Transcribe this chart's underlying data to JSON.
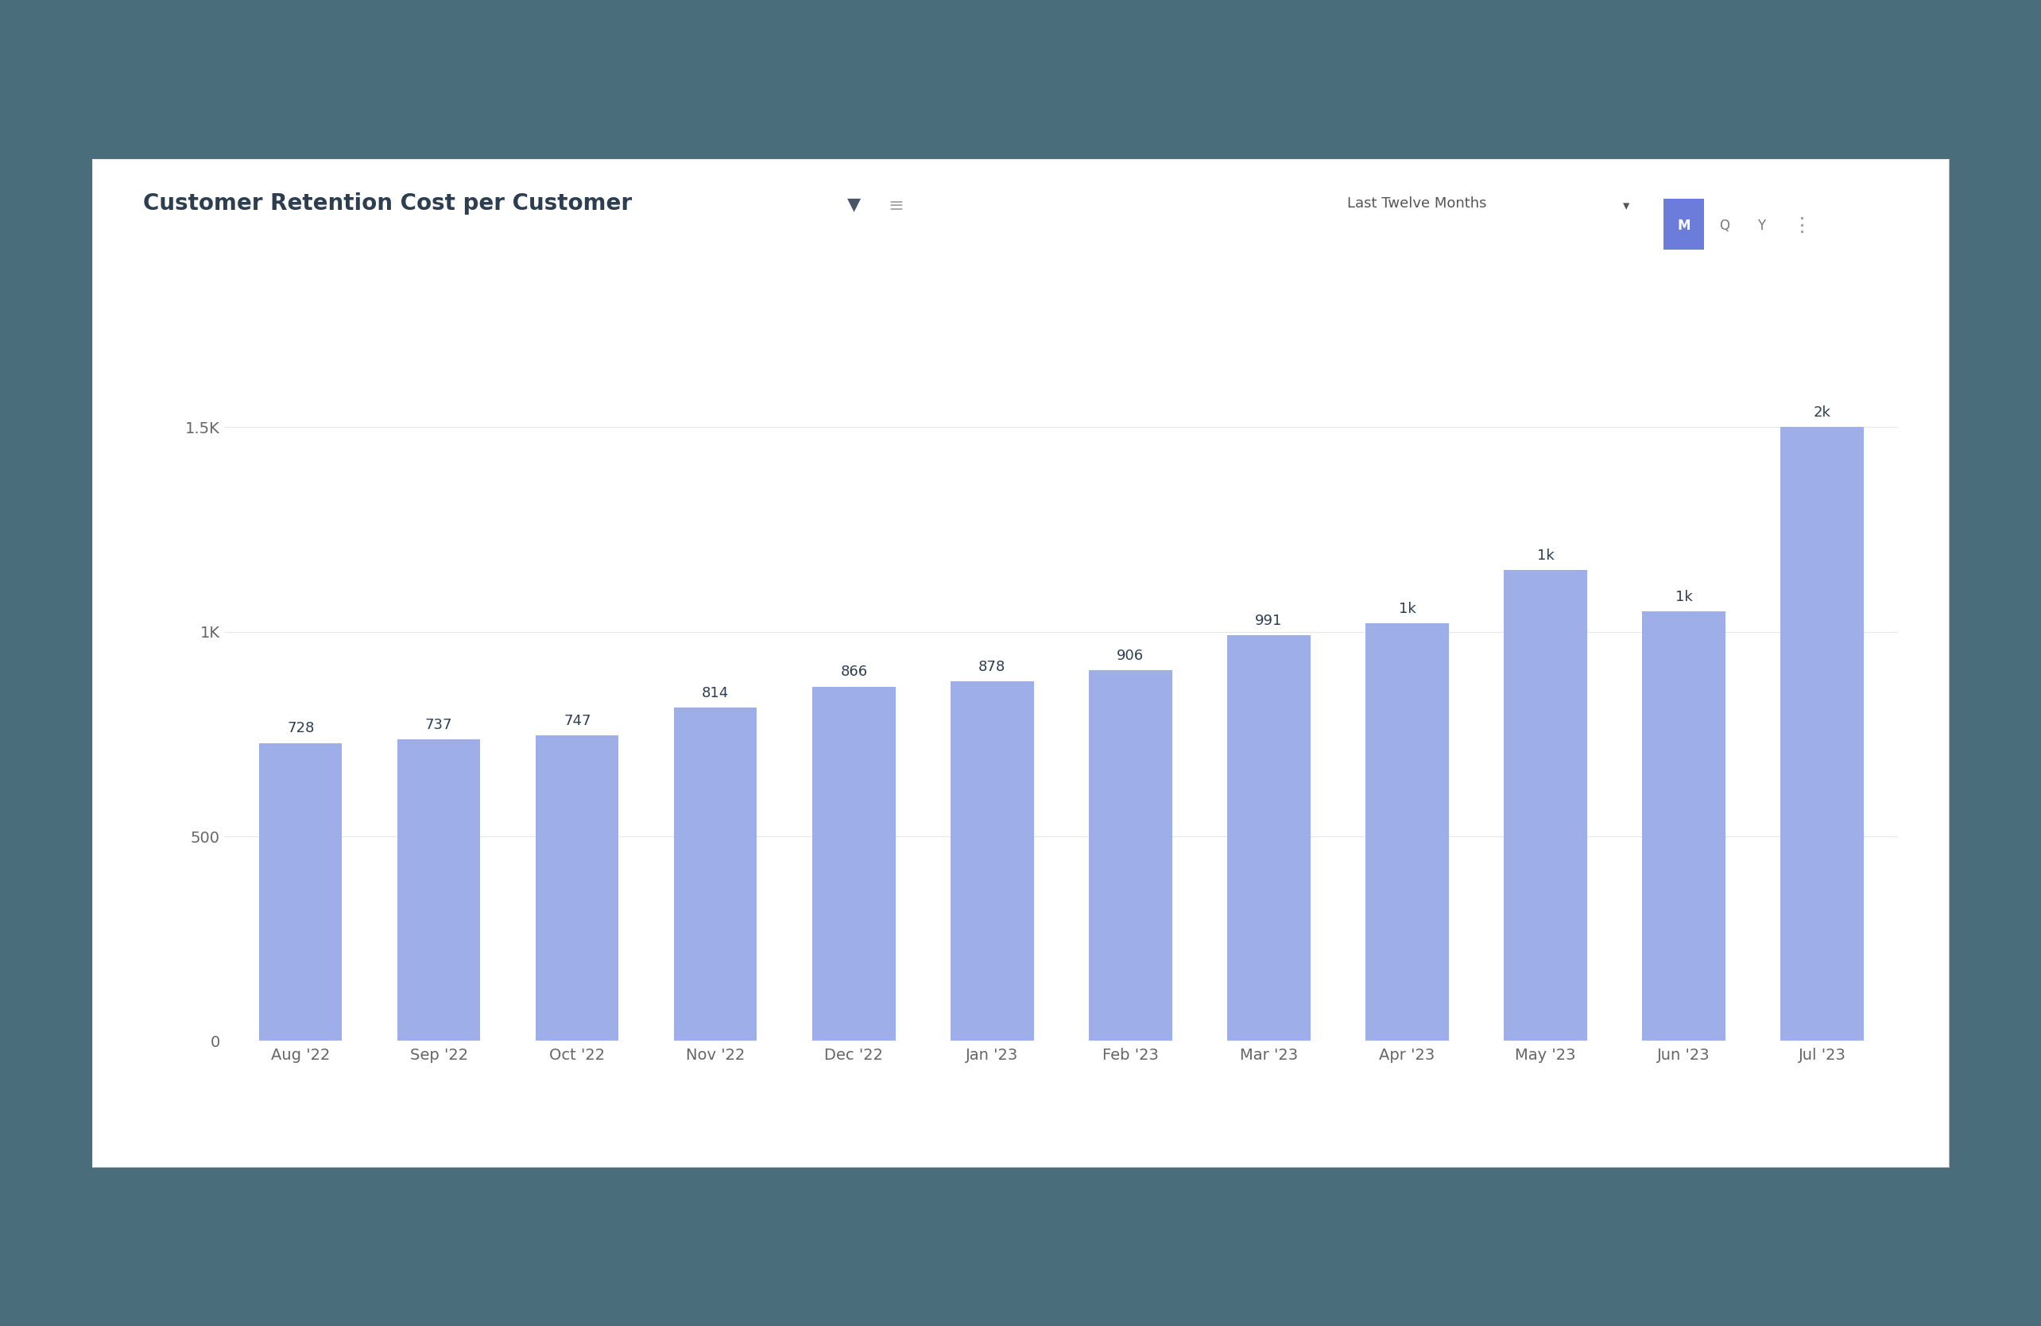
{
  "title": "Customer Retention Cost per Customer",
  "categories": [
    "Aug '22",
    "Sep '22",
    "Oct '22",
    "Nov '22",
    "Dec '22",
    "Jan '23",
    "Feb '23",
    "Mar '23",
    "Apr '23",
    "May '23",
    "Jun '23",
    "Jul '23"
  ],
  "values": [
    728,
    737,
    747,
    814,
    866,
    878,
    906,
    991,
    1020,
    1150,
    1050,
    1500
  ],
  "bar_values_display": [
    "728",
    "737",
    "747",
    "814",
    "866",
    "878",
    "906",
    "991",
    "1k",
    "1k",
    "1k",
    "2k"
  ],
  "bar_color": "#9daee8",
  "background_color": "#ffffff",
  "outer_background": "#4a6d7c",
  "title_color": "#2c3e50",
  "gridline_color": "#e8e8e8",
  "yticks": [
    0,
    500,
    1000,
    1500
  ],
  "ytick_labels": [
    "0",
    "500",
    "1K",
    "1.5K"
  ],
  "ylim": [
    0,
    1750
  ],
  "panel_bg": "#ffffff",
  "top_right_text": "Last Twelve Months",
  "m_button_color": "#6b7cdb",
  "title_fontsize": 20,
  "tick_fontsize": 14,
  "value_label_fontsize": 13
}
